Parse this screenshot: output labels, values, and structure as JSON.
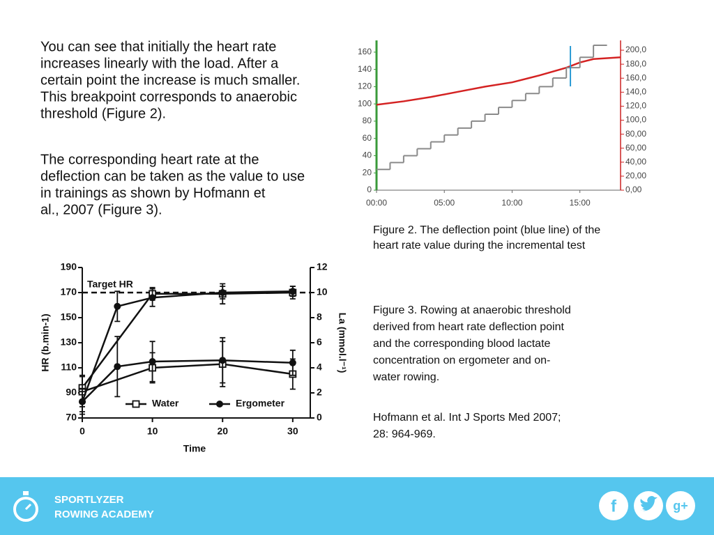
{
  "text": {
    "paragraph1": [
      "You can see that initially the heart rate",
      "increases linearly with the load. After a",
      "certain point the increase is much smaller.",
      "This breakpoint corresponds to anaerobic",
      "threshold (Figure 2)."
    ],
    "paragraph2": [
      "The corresponding heart rate at the",
      "deflection can be taken as the value to use",
      "in trainings as shown by Hofmann et",
      "al., 2007 (Figure 3)."
    ]
  },
  "figure2": {
    "type": "line",
    "xlim": [
      0,
      18
    ],
    "xticks": [
      {
        "value": 0,
        "label": "00:00"
      },
      {
        "value": 5,
        "label": "05:00"
      },
      {
        "value": 10,
        "label": "10:00"
      },
      {
        "value": 15,
        "label": "15:00"
      }
    ],
    "ylim": [
      0,
      172
    ],
    "yticks": [
      0,
      20,
      40,
      60,
      80,
      100,
      120,
      140,
      160
    ],
    "y2lim": [
      0,
      212
    ],
    "y2ticks": [
      {
        "value": 0,
        "label": "0,00"
      },
      {
        "value": 20,
        "label": "20,00"
      },
      {
        "value": 40,
        "label": "40,00"
      },
      {
        "value": 60,
        "label": "60,00"
      },
      {
        "value": 80,
        "label": "80,00"
      },
      {
        "value": 100,
        "label": "100,0"
      },
      {
        "value": 120,
        "label": "120,0"
      },
      {
        "value": 140,
        "label": "140,0"
      },
      {
        "value": 160,
        "label": "160,0"
      },
      {
        "value": 180,
        "label": "180,0"
      },
      {
        "value": 200,
        "label": "200,0"
      }
    ],
    "series": [
      {
        "color": "#d42222",
        "x": [
          0,
          2,
          4,
          6,
          8,
          10,
          12,
          14,
          15,
          16,
          17,
          18
        ],
        "values": [
          99,
          103,
          108,
          114,
          120,
          125,
          133,
          142,
          148,
          152,
          153,
          154
        ]
      },
      {
        "color": "#8a8a8a",
        "step": true,
        "x": [
          0,
          1,
          2,
          3,
          4,
          5,
          6,
          7,
          8,
          9,
          10,
          11,
          12,
          13,
          14,
          15,
          16
        ],
        "values": [
          24,
          32,
          40,
          48,
          56,
          64,
          72,
          80,
          88,
          96,
          104,
          112,
          120,
          130,
          142,
          154,
          168
        ]
      }
    ],
    "deflection_x": 14.3,
    "caption": [
      "Figure 2. The deflection point (blue line) of the",
      "heart rate value during the incremental test"
    ]
  },
  "figure3": {
    "type": "line",
    "xlabel": "Time",
    "ylabel": "HR (b.min-1)",
    "y2label": "La (mmol.l⁻¹)",
    "xlim": [
      0,
      32.5
    ],
    "xticks": [
      0,
      10,
      20,
      30
    ],
    "ylim": [
      70,
      190
    ],
    "yticks": [
      70,
      90,
      110,
      130,
      150,
      170,
      190
    ],
    "y2lim": [
      0,
      12
    ],
    "y2ticks": [
      0,
      2,
      4,
      6,
      8,
      10,
      12
    ],
    "target_hr": 170,
    "target_label": "Target HR",
    "series": [
      {
        "name": "Water",
        "marker": "square",
        "hr": {
          "x": [
            0,
            10,
            20,
            30
          ],
          "values": [
            94,
            169,
            169,
            170
          ],
          "errors": [
            10,
            5,
            8,
            5
          ]
        },
        "la": {
          "x": [
            0,
            10,
            20,
            30
          ],
          "values": [
            2.1,
            4.0,
            4.3,
            3.5
          ],
          "errors": [
            1.2,
            1.2,
            1.8,
            1.2
          ]
        }
      },
      {
        "name": "Ergometer",
        "marker": "circle",
        "hr": {
          "x": [
            0,
            5,
            10,
            20,
            30
          ],
          "values": [
            83,
            159,
            166,
            170,
            171
          ],
          "errors": [
            10,
            12,
            7,
            5,
            4
          ]
        },
        "la": {
          "x": [
            0,
            5,
            10,
            20,
            30
          ],
          "values": [
            1.3,
            4.1,
            4.5,
            4.6,
            4.4
          ],
          "errors": [
            0.8,
            2.4,
            1.6,
            1.8,
            1.0
          ]
        }
      }
    ],
    "caption": [
      "Figure 3. Rowing at anaerobic threshold",
      "derived from heart rate deflection point",
      "and the corresponding blood  lactate",
      "concentration on ergometer and on-",
      "water rowing."
    ]
  },
  "reference": [
    "Hofmann et al. Int J Sports Med 2007;",
    "28: 964-969."
  ],
  "footer": {
    "line1": "SPORTLYZER",
    "line2": "ROWING ACADEMY",
    "facebook": "f",
    "google": "g+"
  }
}
